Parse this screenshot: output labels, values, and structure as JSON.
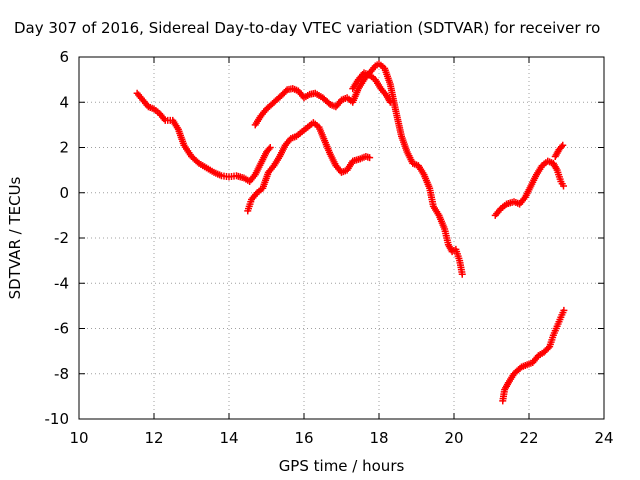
{
  "chart_data": {
    "type": "scatter",
    "title": "Day 307 of 2016, Sidereal Day-to-day VTEC variation (SDTVAR) for receiver ro",
    "xlabel": "GPS time / hours",
    "ylabel": "SDTVAR / TECUs",
    "xlim": [
      10,
      24
    ],
    "ylim": [
      -10,
      6
    ],
    "xticks": [
      10,
      12,
      14,
      16,
      18,
      20,
      22,
      24
    ],
    "yticks": [
      -10,
      -8,
      -6,
      -4,
      -2,
      0,
      2,
      4,
      6
    ],
    "grid": true,
    "legend": "none",
    "marker": "plus",
    "color": "#ff0000",
    "series": [
      {
        "values": [
          [
            11.55,
            4.4
          ],
          [
            11.7,
            4.1
          ],
          [
            11.85,
            3.8
          ],
          [
            12.0,
            3.7
          ],
          [
            12.15,
            3.5
          ],
          [
            12.3,
            3.2
          ],
          [
            12.5,
            3.2
          ],
          [
            12.65,
            2.8
          ],
          [
            12.8,
            2.1
          ],
          [
            13.0,
            1.6
          ],
          [
            13.2,
            1.3
          ],
          [
            13.4,
            1.1
          ],
          [
            13.6,
            0.9
          ],
          [
            13.8,
            0.75
          ],
          [
            14.0,
            0.7
          ],
          [
            14.2,
            0.75
          ],
          [
            14.4,
            0.65
          ],
          [
            14.55,
            0.5
          ],
          [
            14.7,
            0.8
          ],
          [
            14.85,
            1.3
          ],
          [
            15.0,
            1.8
          ],
          [
            15.1,
            2.0
          ]
        ]
      },
      {
        "values": [
          [
            14.7,
            3.0
          ],
          [
            14.85,
            3.4
          ],
          [
            15.0,
            3.7
          ],
          [
            15.2,
            4.0
          ],
          [
            15.4,
            4.3
          ],
          [
            15.55,
            4.55
          ],
          [
            15.7,
            4.6
          ],
          [
            15.85,
            4.5
          ],
          [
            16.0,
            4.2
          ],
          [
            16.15,
            4.35
          ],
          [
            16.3,
            4.4
          ],
          [
            16.5,
            4.2
          ],
          [
            16.7,
            3.9
          ],
          [
            16.85,
            3.8
          ],
          [
            17.0,
            4.1
          ],
          [
            17.15,
            4.2
          ],
          [
            17.3,
            4.0
          ],
          [
            17.45,
            4.6
          ],
          [
            17.6,
            5.0
          ],
          [
            17.75,
            5.3
          ],
          [
            17.9,
            5.6
          ],
          [
            18.0,
            5.7
          ],
          [
            18.15,
            5.5
          ],
          [
            18.3,
            4.8
          ],
          [
            18.45,
            3.6
          ],
          [
            18.6,
            2.5
          ],
          [
            18.75,
            1.8
          ],
          [
            18.9,
            1.3
          ],
          [
            19.05,
            1.2
          ],
          [
            19.2,
            0.8
          ],
          [
            19.35,
            0.2
          ],
          [
            19.45,
            -0.6
          ],
          [
            19.6,
            -1.0
          ],
          [
            19.75,
            -1.6
          ],
          [
            19.85,
            -2.3
          ],
          [
            19.95,
            -2.6
          ],
          [
            20.05,
            -2.5
          ],
          [
            20.15,
            -3.0
          ],
          [
            20.22,
            -3.6
          ]
        ]
      },
      {
        "values": [
          [
            14.5,
            -0.8
          ],
          [
            14.6,
            -0.3
          ],
          [
            14.75,
            0.0
          ],
          [
            14.9,
            0.2
          ],
          [
            15.05,
            0.9
          ],
          [
            15.2,
            1.2
          ],
          [
            15.35,
            1.6
          ],
          [
            15.5,
            2.1
          ],
          [
            15.65,
            2.4
          ],
          [
            15.8,
            2.5
          ],
          [
            15.95,
            2.7
          ],
          [
            16.1,
            2.9
          ],
          [
            16.25,
            3.1
          ],
          [
            16.4,
            2.9
          ],
          [
            16.55,
            2.3
          ],
          [
            16.7,
            1.7
          ],
          [
            16.85,
            1.2
          ],
          [
            17.0,
            0.9
          ],
          [
            17.15,
            1.0
          ],
          [
            17.3,
            1.4
          ],
          [
            17.5,
            1.5
          ],
          [
            17.65,
            1.6
          ],
          [
            17.75,
            1.55
          ]
        ]
      },
      {
        "values": [
          [
            17.3,
            4.6
          ],
          [
            17.45,
            5.0
          ],
          [
            17.6,
            5.3
          ],
          [
            17.75,
            5.2
          ],
          [
            17.9,
            5.0
          ],
          [
            18.05,
            4.6
          ],
          [
            18.2,
            4.3
          ],
          [
            18.3,
            4.0
          ]
        ]
      },
      {
        "values": [
          [
            21.1,
            -1.0
          ],
          [
            21.25,
            -0.7
          ],
          [
            21.4,
            -0.5
          ],
          [
            21.6,
            -0.4
          ],
          [
            21.75,
            -0.5
          ],
          [
            21.9,
            -0.2
          ],
          [
            22.05,
            0.3
          ],
          [
            22.2,
            0.8
          ],
          [
            22.35,
            1.2
          ],
          [
            22.5,
            1.4
          ],
          [
            22.65,
            1.3
          ],
          [
            22.75,
            1.0
          ],
          [
            22.85,
            0.5
          ],
          [
            22.92,
            0.3
          ]
        ]
      },
      {
        "values": [
          [
            22.7,
            1.6
          ],
          [
            22.8,
            1.9
          ],
          [
            22.9,
            2.1
          ]
        ]
      },
      {
        "values": [
          [
            21.3,
            -9.2
          ],
          [
            21.35,
            -8.7
          ],
          [
            21.45,
            -8.4
          ],
          [
            21.6,
            -8.0
          ],
          [
            21.8,
            -7.7
          ],
          [
            21.95,
            -7.6
          ],
          [
            22.1,
            -7.5
          ],
          [
            22.25,
            -7.2
          ],
          [
            22.4,
            -7.05
          ],
          [
            22.55,
            -6.8
          ],
          [
            22.65,
            -6.3
          ],
          [
            22.75,
            -5.9
          ],
          [
            22.85,
            -5.5
          ],
          [
            22.93,
            -5.2
          ]
        ]
      }
    ]
  }
}
